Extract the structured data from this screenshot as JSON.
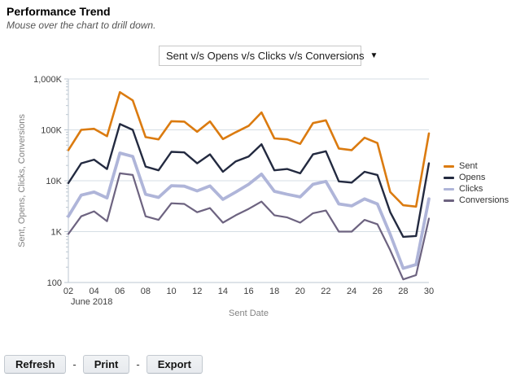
{
  "page": {
    "title": "Performance Trend",
    "subtitle": "Mouse over the chart to drill down."
  },
  "dropdown": {
    "selected": "Sent v/s Opens v/s Clicks v/s Conversions",
    "arrow": "▼"
  },
  "chart_data": {
    "type": "line",
    "yscale": "log",
    "ylim": [
      100,
      1000000
    ],
    "grid": true,
    "legend_position": "right",
    "xlabel": "Sent Date",
    "ylabel": "Sent, Opens, Clicks, Conversions",
    "x_context": "June 2018",
    "x": [
      2,
      3,
      4,
      5,
      6,
      7,
      8,
      9,
      10,
      11,
      12,
      13,
      14,
      15,
      16,
      17,
      18,
      19,
      20,
      21,
      22,
      23,
      24,
      25,
      26,
      27,
      28,
      29,
      30
    ],
    "xticks": [
      "02",
      "04",
      "06",
      "08",
      "10",
      "12",
      "14",
      "16",
      "18",
      "20",
      "22",
      "24",
      "26",
      "28",
      "30"
    ],
    "yticks": [
      {
        "label": "1,000K",
        "value": 1000000
      },
      {
        "label": "100K",
        "value": 100000
      },
      {
        "label": "10K",
        "value": 10000
      },
      {
        "label": "1K",
        "value": 1000
      },
      {
        "label": "100",
        "value": 100
      }
    ],
    "series": [
      {
        "name": "Sent",
        "color": "#DB7B10",
        "width": 2.6,
        "values": [
          40000,
          100000,
          105000,
          75000,
          550000,
          380000,
          72000,
          65000,
          148000,
          145000,
          92000,
          146000,
          66000,
          90000,
          120000,
          220000,
          68000,
          65000,
          53000,
          136000,
          154000,
          43000,
          40000,
          70000,
          55000,
          6000,
          3300,
          3100,
          85000
        ]
      },
      {
        "name": "Opens",
        "color": "#232A40",
        "width": 2.4,
        "values": [
          9000,
          22000,
          26000,
          17000,
          130000,
          100000,
          19000,
          16000,
          37000,
          36000,
          22000,
          33000,
          15000,
          24000,
          30000,
          52000,
          16000,
          17000,
          14000,
          33000,
          38000,
          9700,
          9200,
          15000,
          13000,
          2400,
          790,
          820,
          22000
        ]
      },
      {
        "name": "Clicks",
        "color": "#AFB5D9",
        "width": 3.8,
        "values": [
          2000,
          5200,
          6000,
          4600,
          35000,
          30000,
          5400,
          4700,
          8000,
          7800,
          6300,
          7900,
          4300,
          6000,
          8500,
          13500,
          6200,
          5400,
          4800,
          8500,
          9700,
          3500,
          3200,
          4400,
          3500,
          880,
          190,
          225,
          4400
        ]
      },
      {
        "name": "Conversions",
        "color": "#6D6380",
        "width": 2.2,
        "values": [
          900,
          2000,
          2500,
          1600,
          14000,
          13000,
          2000,
          1700,
          3600,
          3500,
          2400,
          2900,
          1500,
          2100,
          2800,
          3900,
          2100,
          1900,
          1500,
          2300,
          2600,
          1000,
          1000,
          1700,
          1400,
          430,
          115,
          140,
          1800
        ]
      }
    ],
    "colors": {
      "gridline": "#D6DEE5",
      "axis": "#BCC7D1",
      "tick_text": "#3d3d3d",
      "axis_label_text": "#838383"
    }
  },
  "footer": {
    "buttons": [
      "Refresh",
      "Print",
      "Export"
    ],
    "separator": "-"
  }
}
